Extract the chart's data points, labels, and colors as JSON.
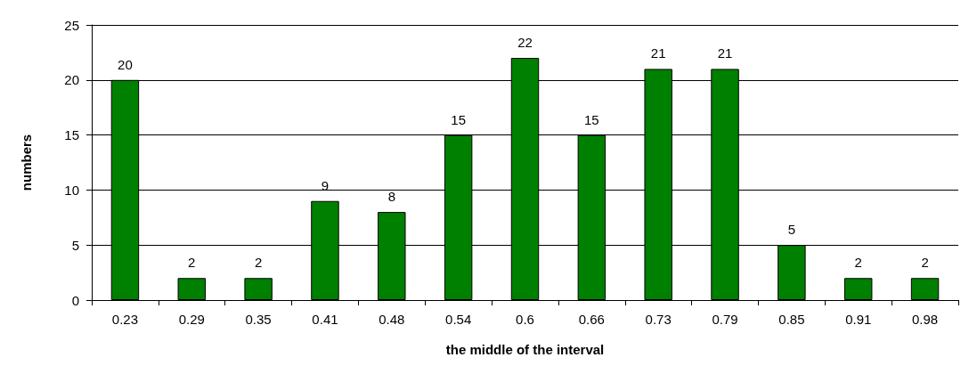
{
  "chart_data": {
    "type": "bar",
    "xlabel": "the middle of the interval",
    "ylabel": "numbers",
    "categories": [
      "0.23",
      "0.29",
      "0.35",
      "0.41",
      "0.48",
      "0.54",
      "0.6",
      "0.66",
      "0.73",
      "0.79",
      "0.85",
      "0.91",
      "0.98"
    ],
    "values": [
      20,
      2,
      2,
      9,
      8,
      15,
      22,
      15,
      21,
      21,
      5,
      2,
      2
    ],
    "color": "#008000",
    "ylim": [
      0,
      25
    ],
    "yticks": [
      0,
      5,
      10,
      15,
      20,
      25
    ],
    "grid": "y",
    "data_labels": true
  }
}
